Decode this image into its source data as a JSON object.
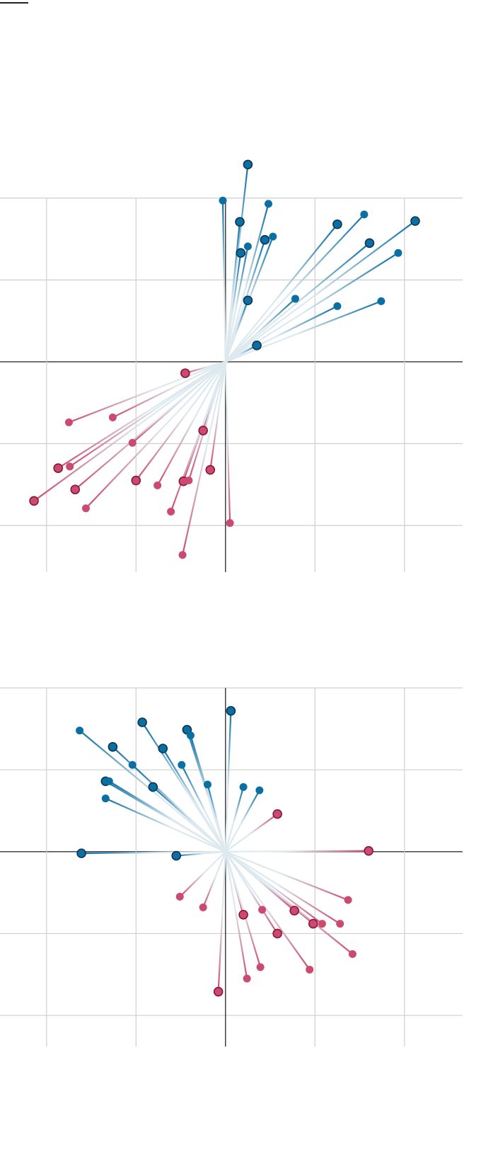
{
  "chart_data": [
    {
      "type": "scatter",
      "xlim": [
        -2.52,
        2.65
      ],
      "ylim": [
        -2.57,
        2.69
      ],
      "xticks": [
        -2,
        -1,
        0,
        1,
        2
      ],
      "yticks": [
        -2,
        -1,
        0,
        1,
        2
      ],
      "grid": true,
      "stems": true,
      "series": [
        {
          "color": "#0b6fa4",
          "edgecolor": "#0c3553",
          "x": [
            0.25,
            -0.03,
            0.16,
            0.48,
            0.25,
            0.17,
            0.44,
            0.53,
            1.25,
            1.55,
            2.12,
            1.61,
            1.93,
            0.25,
            0.78,
            1.25,
            1.74,
            0.35
          ],
          "y": [
            2.41,
            1.97,
            1.71,
            1.93,
            1.41,
            1.33,
            1.49,
            1.53,
            1.68,
            1.8,
            1.72,
            1.45,
            1.33,
            0.75,
            0.77,
            0.68,
            0.74,
            0.2
          ],
          "outlined": [
            true,
            false,
            true,
            false,
            false,
            true,
            true,
            false,
            true,
            false,
            true,
            true,
            false,
            true,
            false,
            false,
            false,
            true
          ]
        },
        {
          "color": "#cb4b70",
          "edgecolor": "#8a1538",
          "x": [
            -0.45,
            -1.75,
            -1.26,
            -0.25,
            -1.04,
            -1.87,
            -1.74,
            -1.68,
            -1.0,
            -0.76,
            -0.47,
            -0.41,
            -0.17,
            -2.14,
            -1.56,
            -0.61,
            0.05,
            -0.48
          ],
          "y": [
            -0.14,
            -0.74,
            -0.68,
            -0.84,
            -0.99,
            -1.3,
            -1.28,
            -1.56,
            -1.45,
            -1.51,
            -1.46,
            -1.45,
            -1.32,
            -1.7,
            -1.79,
            -1.83,
            -1.97,
            -2.36
          ],
          "outlined": [
            true,
            false,
            false,
            true,
            false,
            true,
            false,
            true,
            true,
            false,
            true,
            false,
            true,
            true,
            false,
            false,
            false,
            false
          ]
        }
      ]
    },
    {
      "type": "scatter",
      "xlim": [
        -2.52,
        2.65
      ],
      "ylim": [
        -2.38,
        2.1
      ],
      "xticks": [
        -2,
        -1,
        0,
        1,
        2
      ],
      "yticks": [
        -2,
        -1,
        0,
        1,
        2
      ],
      "grid": true,
      "stems": true,
      "series": [
        {
          "color": "#0b6fa4",
          "edgecolor": "#0c3553",
          "x": [
            0.06,
            -1.63,
            -0.93,
            -1.26,
            -0.43,
            -0.39,
            -0.7,
            -1.04,
            -0.49,
            -1.34,
            -1.3,
            -0.81,
            -0.2,
            0.2,
            0.38,
            -1.34,
            -1.61,
            -0.55
          ],
          "y": [
            1.72,
            1.48,
            1.58,
            1.28,
            1.49,
            1.42,
            1.26,
            1.06,
            1.06,
            0.86,
            0.86,
            0.79,
            0.82,
            0.79,
            0.75,
            0.65,
            -0.02,
            -0.05
          ],
          "outlined": [
            true,
            false,
            true,
            true,
            true,
            false,
            true,
            false,
            false,
            true,
            false,
            true,
            false,
            false,
            false,
            false,
            true,
            true
          ]
        },
        {
          "color": "#cb4b70",
          "edgecolor": "#8a1538",
          "x": [
            0.58,
            1.6,
            -0.51,
            -0.25,
            0.2,
            0.41,
            0.77,
            1.37,
            0.98,
            1.08,
            1.28,
            0.58,
            1.42,
            0.39,
            0.24,
            0.94,
            -0.08
          ],
          "y": [
            0.46,
            0.01,
            -0.55,
            -0.68,
            -0.77,
            -0.71,
            -0.72,
            -0.59,
            -0.88,
            -0.88,
            -0.88,
            -1.0,
            -1.25,
            -1.41,
            -1.55,
            -1.44,
            -1.71
          ],
          "outlined": [
            true,
            true,
            false,
            false,
            true,
            false,
            true,
            false,
            true,
            false,
            false,
            true,
            false,
            false,
            false,
            false,
            true
          ]
        }
      ]
    }
  ]
}
